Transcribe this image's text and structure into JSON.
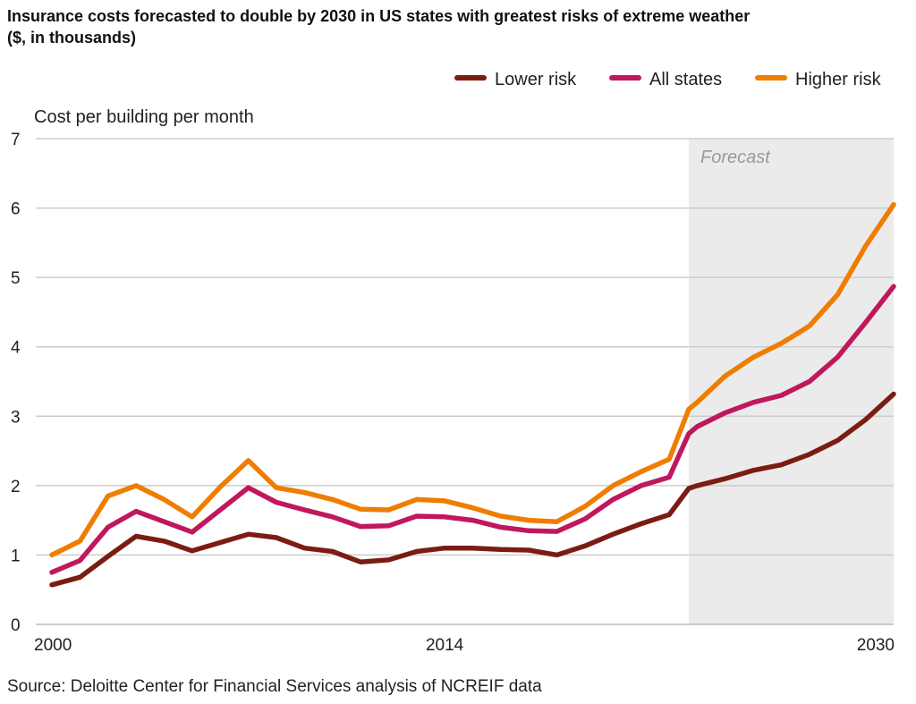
{
  "chart_data": {
    "type": "line",
    "title": "Insurance costs forecasted to double by 2030 in US states with greatest risks of extreme weather",
    "subtitle": "($, in thousands)",
    "ylabel": "Cost per building per month",
    "xlabel": "",
    "source": "Source: Deloitte Center for Financial Services analysis of NCREIF data",
    "forecast_label": "Forecast",
    "forecast_range": [
      2022.7,
      2030
    ],
    "xlim": [
      2000,
      2030
    ],
    "ylim": [
      0,
      7
    ],
    "x_ticks": [
      2000,
      2014,
      2030
    ],
    "y_ticks": [
      0,
      1,
      2,
      3,
      4,
      5,
      6,
      7
    ],
    "grid": "horizontal",
    "legend_position": "top-right",
    "x": [
      2000,
      2001,
      2002,
      2003,
      2004,
      2005,
      2006,
      2007,
      2008,
      2009,
      2010,
      2011,
      2012,
      2013,
      2014,
      2015,
      2016,
      2017,
      2018,
      2019,
      2020,
      2021,
      2022,
      2022.7,
      2023,
      2024,
      2025,
      2026,
      2027,
      2028,
      2029,
      2030
    ],
    "series": [
      {
        "name": "Lower risk",
        "color": "#7b1c13",
        "values": [
          0.57,
          0.68,
          0.98,
          1.27,
          1.2,
          1.06,
          1.18,
          1.3,
          1.25,
          1.1,
          1.05,
          0.9,
          0.93,
          1.05,
          1.1,
          1.1,
          1.08,
          1.07,
          1.0,
          1.13,
          1.3,
          1.45,
          1.58,
          1.96,
          2.0,
          2.1,
          2.22,
          2.3,
          2.45,
          2.65,
          2.95,
          3.32
        ]
      },
      {
        "name": "All states",
        "color": "#c0175d",
        "values": [
          0.75,
          0.92,
          1.4,
          1.63,
          1.48,
          1.33,
          1.65,
          1.97,
          1.76,
          1.65,
          1.55,
          1.41,
          1.42,
          1.56,
          1.55,
          1.5,
          1.4,
          1.35,
          1.34,
          1.52,
          1.8,
          2.0,
          2.12,
          2.75,
          2.85,
          3.05,
          3.2,
          3.3,
          3.5,
          3.85,
          4.35,
          4.87
        ]
      },
      {
        "name": "Higher risk",
        "color": "#ef7d00",
        "values": [
          1.0,
          1.2,
          1.85,
          2.0,
          1.8,
          1.55,
          1.98,
          2.36,
          1.97,
          1.9,
          1.8,
          1.66,
          1.65,
          1.8,
          1.78,
          1.68,
          1.56,
          1.5,
          1.48,
          1.7,
          2.0,
          2.2,
          2.38,
          3.1,
          3.2,
          3.58,
          3.85,
          4.05,
          4.3,
          4.75,
          5.45,
          6.05
        ]
      }
    ],
    "colors": {
      "forecast_shade": "#ebebeb",
      "grid": "#cccccc"
    }
  }
}
